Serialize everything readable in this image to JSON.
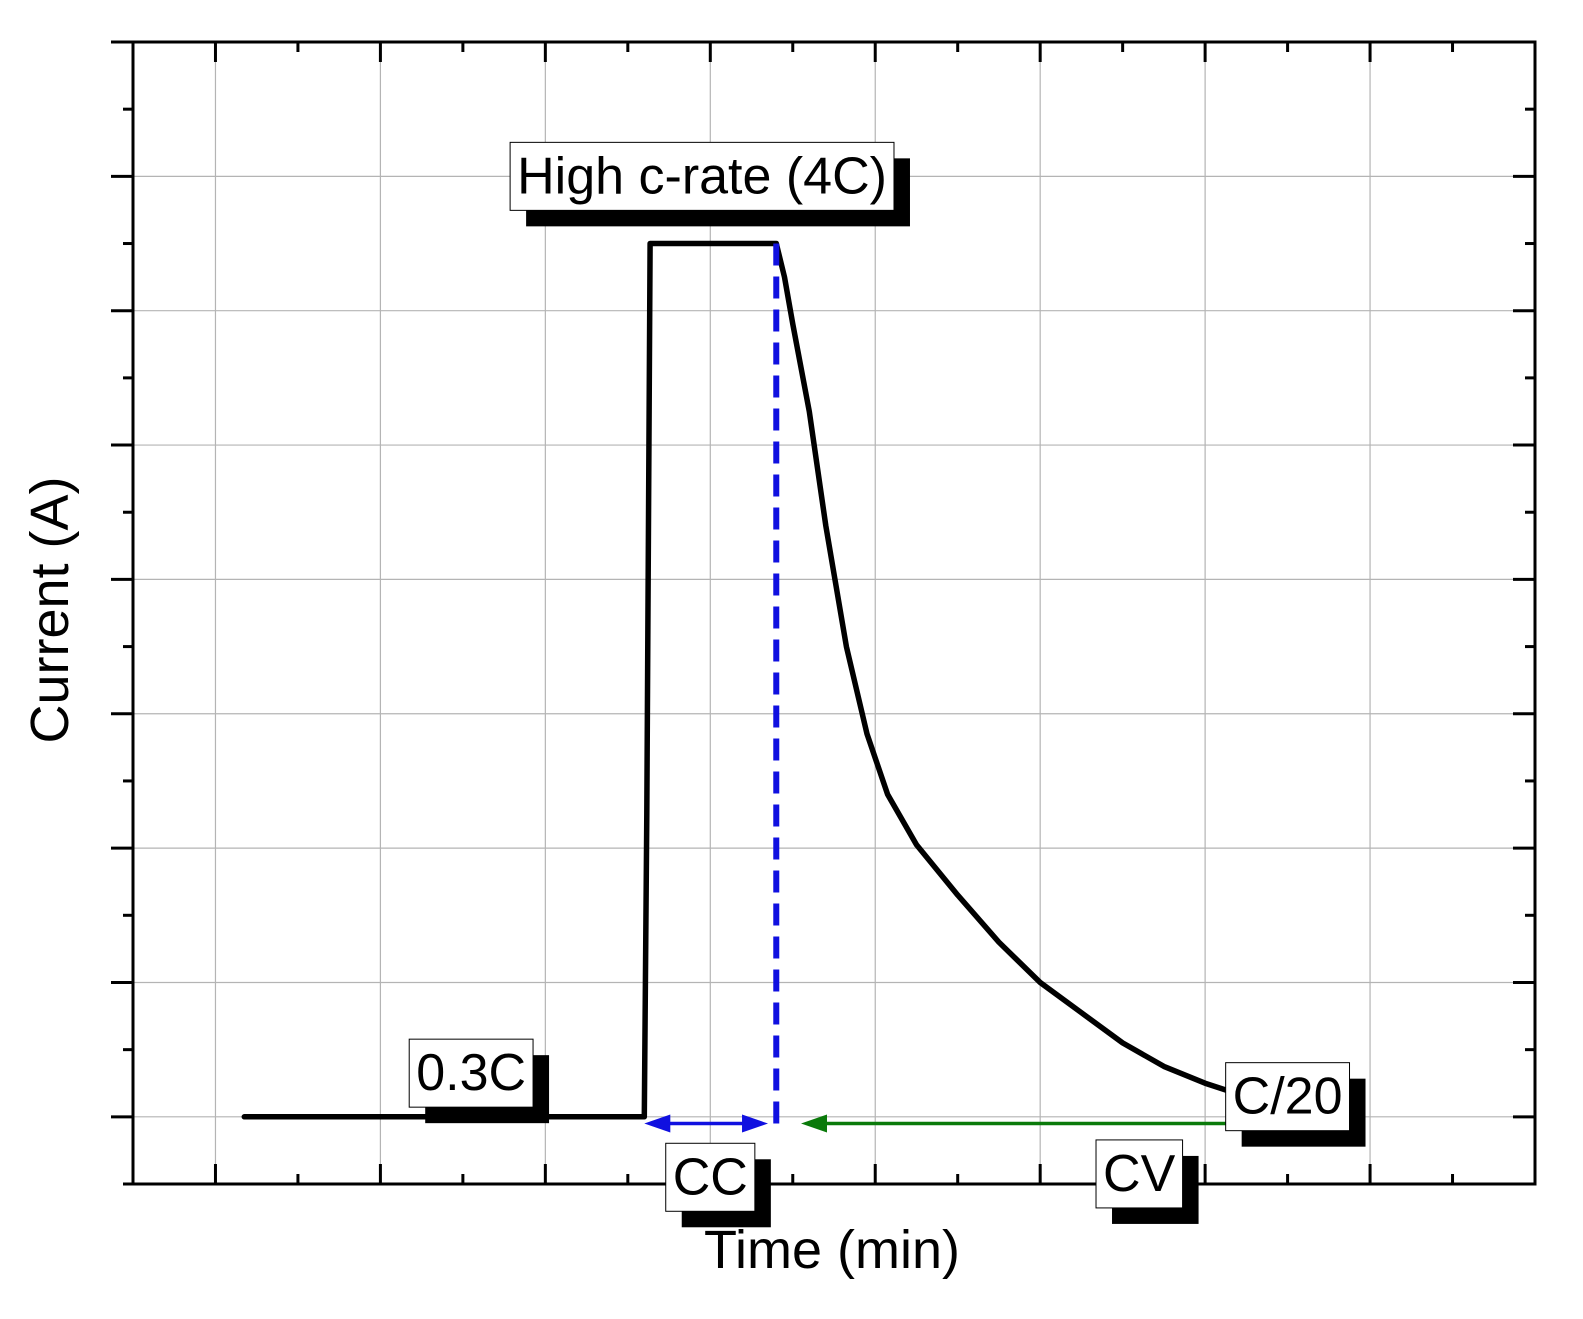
{
  "chart_data": {
    "type": "line",
    "title": "",
    "xlabel": "Time (min)",
    "ylabel": "Current (A)",
    "xlim": [
      0,
      17
    ],
    "ylim": [
      0,
      17
    ],
    "grid": true,
    "tick_labels_shown": false,
    "series": [
      {
        "color": "#000000",
        "points": [
          [
            1.35,
            1.0
          ],
          [
            6.2,
            1.0
          ],
          [
            6.23,
            5.5
          ],
          [
            6.27,
            14.0
          ],
          [
            7.8,
            14.0
          ],
          [
            7.9,
            13.5
          ],
          [
            8.0,
            12.8
          ],
          [
            8.2,
            11.5
          ],
          [
            8.4,
            9.8
          ],
          [
            8.65,
            8.0
          ],
          [
            8.9,
            6.7
          ],
          [
            9.15,
            5.8
          ],
          [
            9.5,
            5.05
          ],
          [
            10.0,
            4.3
          ],
          [
            10.5,
            3.6
          ],
          [
            11.0,
            3.0
          ],
          [
            11.5,
            2.55
          ],
          [
            12.0,
            2.1
          ],
          [
            12.5,
            1.75
          ],
          [
            13.0,
            1.5
          ],
          [
            13.5,
            1.3
          ],
          [
            14.0,
            1.15
          ],
          [
            14.5,
            1.05
          ],
          [
            14.7,
            1.02
          ],
          [
            14.75,
            0.9
          ]
        ]
      }
    ],
    "marker_line": {
      "x": 7.8,
      "y_from": 14.0,
      "y_to": 0.9,
      "color": "#1010e0"
    },
    "arrows": [
      {
        "name": "cc-arrow",
        "x_from": 6.2,
        "x_to": 7.7,
        "y": 0.9,
        "color": "#1010e0"
      },
      {
        "name": "cv-arrow",
        "x_from": 8.1,
        "x_to": 14.75,
        "y": 0.9,
        "color": "#0a7a0a"
      }
    ],
    "annotations": [
      {
        "name": "label-high-c-rate",
        "text": "High c-rate (4C)",
        "x": 6.9,
        "y": 15.0
      },
      {
        "name": "label-0-3c",
        "text": "0.3C",
        "x": 4.1,
        "y": 1.65
      },
      {
        "name": "label-c-20",
        "text": "C/20",
        "x": 14.0,
        "y": 1.3
      },
      {
        "name": "label-cc",
        "text": "CC",
        "x": 7.0,
        "y": 0.1
      },
      {
        "name": "label-cv",
        "text": "CV",
        "x": 12.2,
        "y": 0.15
      }
    ]
  }
}
